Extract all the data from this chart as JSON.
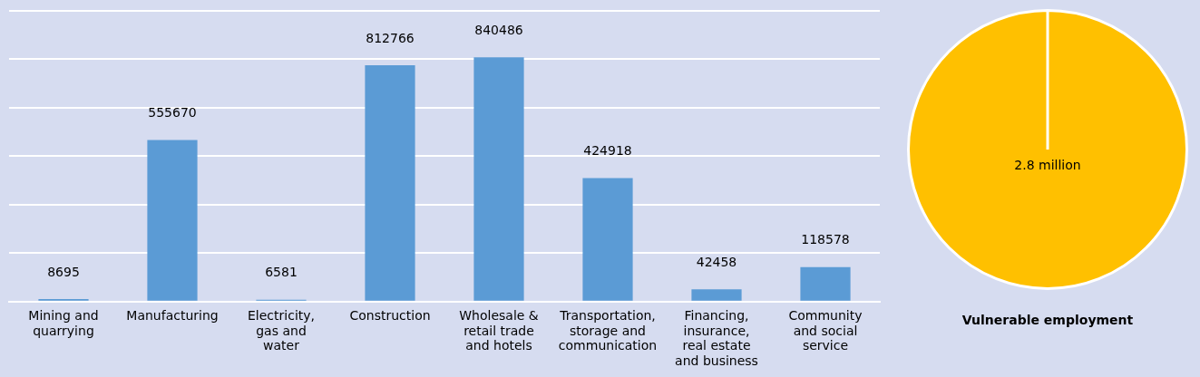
{
  "chart_data": [
    {
      "type": "bar",
      "categories": [
        "Mining and quarrying",
        "Manufacturing",
        "Electricity, gas and water",
        "Construction",
        "Wholesale & retail trade and hotels",
        "Transportation, storage and communication",
        "Financing, insurance, real estate and business",
        "Community and social service"
      ],
      "values": [
        8695,
        555670,
        6581,
        812766,
        840486,
        424918,
        42458,
        118578
      ],
      "color": "#5b9bd5",
      "data_labels": true,
      "ylim": [
        0,
        1000000
      ],
      "yticks": [
        {
          "value": 0,
          "label": null
        },
        {
          "value": 166667,
          "label": null
        },
        {
          "value": 333333,
          "label": null
        },
        {
          "value": 500000,
          "label": null
        },
        {
          "value": 666667,
          "label": null
        },
        {
          "value": 833333,
          "label": null
        },
        {
          "value": 1000000,
          "label": null
        }
      ],
      "grid": "y",
      "tick_labels": "x"
    },
    {
      "type": "pie",
      "categories": [
        null
      ],
      "values": [
        2.8
      ],
      "colors": [
        "#ffc000"
      ],
      "value_labels": [
        "2.8 million"
      ],
      "xlabel": "Vulnerable employment"
    }
  ]
}
